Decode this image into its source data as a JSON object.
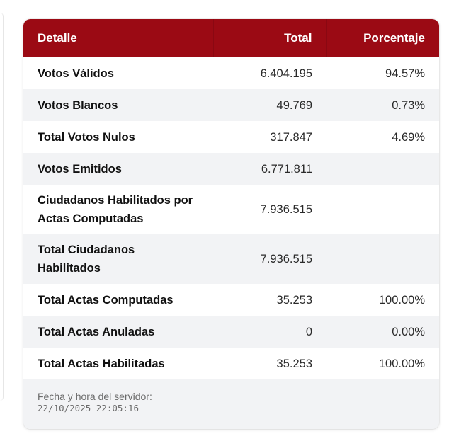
{
  "table": {
    "headers": {
      "detail": "Detalle",
      "total": "Total",
      "percentage": "Porcentaje"
    },
    "rows": [
      {
        "label": "Votos Válidos",
        "total": "6.404.195",
        "percentage": "94.57%"
      },
      {
        "label": "Votos Blancos",
        "total": "49.769",
        "percentage": "0.73%"
      },
      {
        "label": "Total Votos Nulos",
        "total": "317.847",
        "percentage": "4.69%"
      },
      {
        "label": "Votos Emitidos",
        "total": "6.771.811",
        "percentage": ""
      },
      {
        "label": "Ciudadanos Habilitados por Actas Computadas",
        "total": "7.936.515",
        "percentage": ""
      },
      {
        "label": "Total Ciudadanos Habilitados",
        "total": "7.936.515",
        "percentage": ""
      },
      {
        "label": "Total Actas Computadas",
        "total": "35.253",
        "percentage": "100.00%"
      },
      {
        "label": "Total Actas Anuladas",
        "total": "0",
        "percentage": "0.00%"
      },
      {
        "label": "Total Actas Habilitadas",
        "total": "35.253",
        "percentage": "100.00%"
      }
    ]
  },
  "footer": {
    "label": "Fecha y hora del servidor:",
    "timestamp": "22/10/2025 22:05:16"
  },
  "colors": {
    "header_bg": "#9b0a14",
    "stripe": "#f2f3f5"
  }
}
